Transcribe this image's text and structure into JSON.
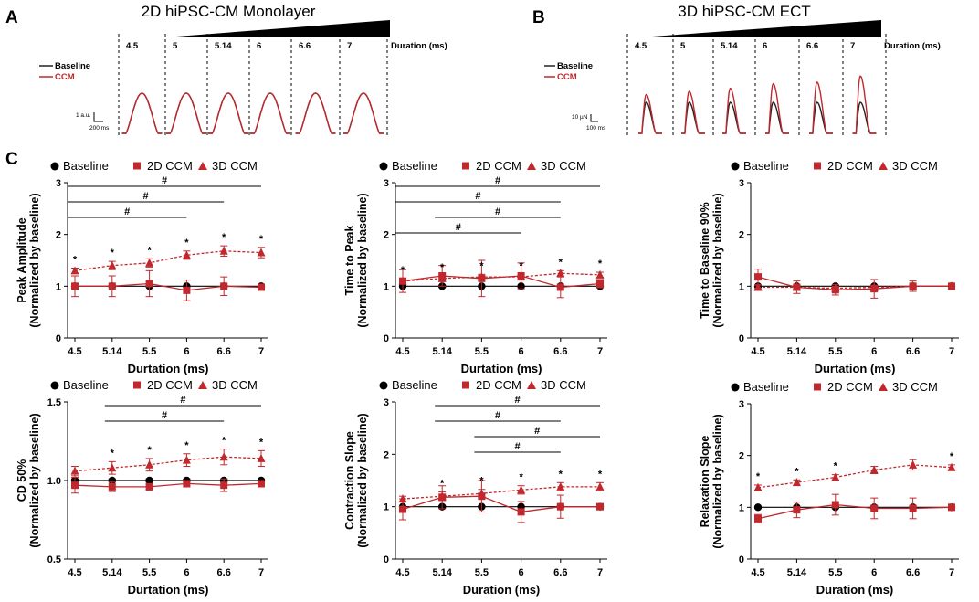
{
  "panel_labels": {
    "a": "A",
    "b": "B",
    "c": "C"
  },
  "top": {
    "a_title": "2D hiPSC-CM Monolayer",
    "b_title": "3D hiPSC-CM ECT",
    "durations": [
      "4.5",
      "5",
      "5.14",
      "6",
      "6.6",
      "7"
    ],
    "duration_label": "Duration (ms)",
    "legend_baseline": "Baseline",
    "legend_ccm": "CCM",
    "a_scale_y": "1 a.u.",
    "a_scale_x": "200 ms",
    "b_scale_y": "10 µN",
    "b_scale_x": "100 ms",
    "colors": {
      "baseline": "#222222",
      "ccm": "#c0282d"
    },
    "a_baseline_amp": [
      1,
      1,
      1,
      1,
      1,
      1
    ],
    "a_ccm_amp": [
      1,
      1,
      1,
      1,
      1,
      1
    ],
    "b_baseline_amp": [
      1,
      1,
      1,
      1,
      1,
      1
    ],
    "b_ccm_amp": [
      1.25,
      1.35,
      1.45,
      1.6,
      1.65,
      1.85
    ]
  },
  "chart_data": [
    {
      "type": "line",
      "ylabel_1": "Peak Amplitude",
      "ylabel_2": "(Normalized by baseline)",
      "xlabel": "Durtation (ms)",
      "categories": [
        "4.5",
        "5.14",
        "5.5",
        "6",
        "6.6",
        "7"
      ],
      "ylim": [
        0,
        3
      ],
      "yticks": [
        "0",
        "1",
        "2",
        "3"
      ],
      "legend": [
        "Baseline",
        "2D CCM",
        "3D CCM"
      ],
      "series": [
        {
          "name": "Baseline",
          "values": [
            1,
            1,
            1,
            1,
            1,
            1
          ],
          "err": [
            0.02,
            0.02,
            0.02,
            0.02,
            0.02,
            0.02
          ]
        },
        {
          "name": "2D CCM",
          "values": [
            1.0,
            1.0,
            1.05,
            0.92,
            1.0,
            0.98
          ],
          "err": [
            0.2,
            0.2,
            0.25,
            0.2,
            0.18,
            0.05
          ]
        },
        {
          "name": "3D CCM",
          "values": [
            1.3,
            1.4,
            1.45,
            1.6,
            1.68,
            1.65
          ],
          "err": [
            0.05,
            0.08,
            0.08,
            0.08,
            0.1,
            0.1
          ]
        }
      ],
      "stars": [
        "*",
        "*",
        "*",
        "*",
        "*",
        "*"
      ],
      "brackets": [
        {
          "label": "#",
          "from": 0,
          "to": 5
        },
        {
          "label": "#",
          "from": 0,
          "to": 4
        },
        {
          "label": "#",
          "from": 0,
          "to": 3
        }
      ]
    },
    {
      "type": "line",
      "ylabel_1": "Time to Peak",
      "ylabel_2": "(Normalized by baseline)",
      "xlabel": "Durtation (ms)",
      "categories": [
        "4.5",
        "5.14",
        "5.5",
        "6",
        "6.6",
        "7"
      ],
      "ylim": [
        0,
        3
      ],
      "yticks": [
        "0",
        "1",
        "2",
        "3"
      ],
      "legend": [
        "Baseline",
        "2D CCM",
        "3D CCM"
      ],
      "series": [
        {
          "name": "Baseline",
          "values": [
            1,
            1,
            1,
            1,
            1,
            1
          ],
          "err": [
            0.02,
            0.02,
            0.02,
            0.02,
            0.02,
            0.02
          ]
        },
        {
          "name": "2D CCM",
          "values": [
            1.1,
            1.2,
            1.15,
            1.2,
            0.98,
            1.05
          ],
          "err": [
            0.22,
            0.2,
            0.35,
            0.25,
            0.2,
            0.08
          ]
        },
        {
          "name": "3D CCM",
          "values": [
            1.1,
            1.15,
            1.18,
            1.18,
            1.25,
            1.22
          ],
          "err": [
            0.05,
            0.05,
            0.05,
            0.05,
            0.05,
            0.05
          ]
        }
      ],
      "stars": [
        "*",
        "*",
        "*",
        "*",
        "*",
        "*"
      ],
      "brackets": [
        {
          "label": "#",
          "from": 0,
          "to": 5
        },
        {
          "label": "#",
          "from": 0,
          "to": 4
        },
        {
          "label": "#",
          "from": 1,
          "to": 4
        },
        {
          "label": "#",
          "from": 0,
          "to": 3
        }
      ]
    },
    {
      "type": "line",
      "ylabel_1": "Time to Baseline 90%",
      "ylabel_2": "(Normalized by baseline)",
      "xlabel": "Durtation (ms)",
      "categories": [
        "4.5",
        "5.14",
        "5.5",
        "6",
        "6.6",
        "7"
      ],
      "ylim": [
        0,
        3
      ],
      "yticks": [
        "0",
        "1",
        "2",
        "3"
      ],
      "legend": [
        "Baseline",
        "2D CCM",
        "3D CCM"
      ],
      "series": [
        {
          "name": "Baseline",
          "values": [
            1,
            1,
            1,
            1,
            1,
            1
          ],
          "err": [
            0.02,
            0.02,
            0.02,
            0.02,
            0.02,
            0.02
          ]
        },
        {
          "name": "2D CCM",
          "values": [
            1.18,
            0.98,
            0.93,
            0.95,
            1.0,
            1.0
          ],
          "err": [
            0.15,
            0.12,
            0.1,
            0.18,
            0.1,
            0.05
          ]
        },
        {
          "name": "3D CCM",
          "values": [
            0.98,
            0.98,
            0.96,
            0.98,
            1.0,
            1.0
          ],
          "err": [
            0.04,
            0.04,
            0.04,
            0.04,
            0.04,
            0.03
          ]
        }
      ],
      "stars": [
        "",
        "",
        "",
        "",
        "",
        ""
      ],
      "brackets": []
    },
    {
      "type": "line",
      "ylabel_1": "CD 50%",
      "ylabel_2": "(Normalized by baseline)",
      "xlabel": "Durtation (ms)",
      "categories": [
        "4.5",
        "5.14",
        "5.5",
        "6",
        "6.6",
        "7"
      ],
      "ylim": [
        0.5,
        1.5
      ],
      "yticks": [
        "0.5",
        "1.0",
        "1.5"
      ],
      "legend": [
        "Baseline",
        "2D CCM",
        "3D CCM"
      ],
      "series": [
        {
          "name": "Baseline",
          "values": [
            1,
            1,
            1,
            1,
            1,
            1
          ],
          "err": [
            0.01,
            0.01,
            0.01,
            0.01,
            0.01,
            0.01
          ]
        },
        {
          "name": "2D CCM",
          "values": [
            0.97,
            0.96,
            0.96,
            0.98,
            0.97,
            0.98
          ],
          "err": [
            0.05,
            0.03,
            0.02,
            0.02,
            0.04,
            0.02
          ]
        },
        {
          "name": "3D CCM",
          "values": [
            1.06,
            1.08,
            1.1,
            1.13,
            1.15,
            1.14
          ],
          "err": [
            0.03,
            0.04,
            0.04,
            0.04,
            0.05,
            0.05
          ]
        }
      ],
      "stars": [
        "",
        "*",
        "*",
        "*",
        "*",
        "*"
      ],
      "brackets": [
        {
          "label": "#",
          "from": 1,
          "to": 5
        },
        {
          "label": "#",
          "from": 1,
          "to": 4
        }
      ]
    },
    {
      "type": "line",
      "ylabel_1": "Contraction Slope",
      "ylabel_2": "(Normalized by baseline)",
      "xlabel": "Duration (ms)",
      "categories": [
        "4.5",
        "5.14",
        "5.5",
        "6",
        "6.6",
        "7"
      ],
      "ylim": [
        0,
        3
      ],
      "yticks": [
        "0",
        "1",
        "2",
        "3"
      ],
      "legend": [
        "Baseline",
        "2D CCM",
        "3D CCM"
      ],
      "series": [
        {
          "name": "Baseline",
          "values": [
            1,
            1,
            1,
            1,
            1,
            1
          ],
          "err": [
            0.02,
            0.02,
            0.02,
            0.02,
            0.02,
            0.02
          ]
        },
        {
          "name": "2D CCM",
          "values": [
            0.95,
            1.18,
            1.2,
            0.9,
            1.0,
            1.0
          ],
          "err": [
            0.2,
            0.22,
            0.3,
            0.2,
            0.22,
            0.05
          ]
        },
        {
          "name": "3D CCM",
          "values": [
            1.15,
            1.2,
            1.25,
            1.32,
            1.38,
            1.38
          ],
          "err": [
            0.05,
            0.08,
            0.08,
            0.08,
            0.08,
            0.08
          ]
        }
      ],
      "stars": [
        "",
        "*",
        "*",
        "*",
        "*",
        "*"
      ],
      "brackets": [
        {
          "label": "#",
          "from": 1,
          "to": 5
        },
        {
          "label": "#",
          "from": 1,
          "to": 4
        },
        {
          "label": "#",
          "from": 2,
          "to": 5
        },
        {
          "label": "#",
          "from": 2,
          "to": 4
        }
      ]
    },
    {
      "type": "line",
      "ylabel_1": "Relaxation Slope",
      "ylabel_2": "(Normalized by baseline)",
      "xlabel": "Duration (ms)",
      "categories": [
        "4.5",
        "5.14",
        "5.5",
        "6",
        "6.6",
        "7"
      ],
      "ylim": [
        0,
        3
      ],
      "yticks": [
        "0",
        "1",
        "2",
        "3"
      ],
      "legend": [
        "Baseline",
        "2D CCM",
        "3D CCM"
      ],
      "series": [
        {
          "name": "Baseline",
          "values": [
            1,
            1,
            1,
            1,
            1,
            1
          ],
          "err": [
            0.02,
            0.02,
            0.02,
            0.02,
            0.02,
            0.02
          ]
        },
        {
          "name": "2D CCM",
          "values": [
            0.78,
            0.95,
            1.05,
            0.98,
            0.98,
            1.0
          ],
          "err": [
            0.08,
            0.15,
            0.2,
            0.2,
            0.2,
            0.05
          ]
        },
        {
          "name": "3D CCM",
          "values": [
            1.38,
            1.48,
            1.58,
            1.72,
            1.82,
            1.77
          ],
          "err": [
            0.05,
            0.05,
            0.05,
            0.07,
            0.1,
            0.05
          ]
        }
      ],
      "stars": [
        "*",
        "*",
        "*",
        "",
        "",
        "*"
      ],
      "brackets": []
    }
  ]
}
